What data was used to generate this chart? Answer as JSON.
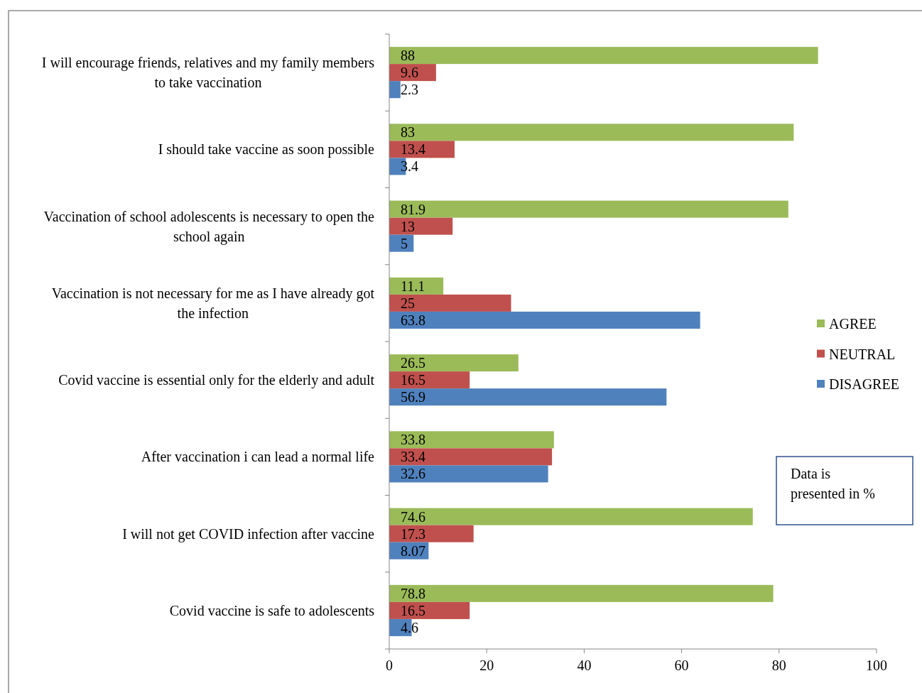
{
  "chart_data": {
    "type": "bar",
    "orientation": "horizontal",
    "categories": [
      "I will encourage friends, relatives and my family members to take vaccination",
      "I should take vaccine as soon possible",
      "Vaccination of school adolescents is necessary to open the school again",
      "Vaccination is not necessary for me as I have already got the infection",
      "Covid vaccine is essential only for the elderly and adult",
      "After vaccination i can lead a normal life",
      "I will not get COVID infection after vaccine",
      "Covid vaccine is safe to adolescents"
    ],
    "series": [
      {
        "name": "AGREE",
        "color": "#9bbb59",
        "values": [
          88,
          83,
          81.9,
          11.1,
          26.5,
          33.8,
          74.6,
          78.8
        ]
      },
      {
        "name": "NEUTRAL",
        "color": "#c0504d",
        "values": [
          9.6,
          13.4,
          13,
          25,
          16.5,
          33.4,
          17.3,
          16.5
        ]
      },
      {
        "name": "DISAGREE",
        "color": "#4f81bd",
        "values": [
          2.3,
          3.4,
          5,
          63.8,
          56.9,
          32.6,
          8.07,
          4.6
        ]
      }
    ],
    "xlim": [
      0,
      100
    ],
    "xticks": [
      0,
      20,
      40,
      60,
      80,
      100
    ],
    "data_labels": true,
    "legend": "right",
    "grid": false,
    "annotations": [
      "Data is presented in %"
    ]
  }
}
